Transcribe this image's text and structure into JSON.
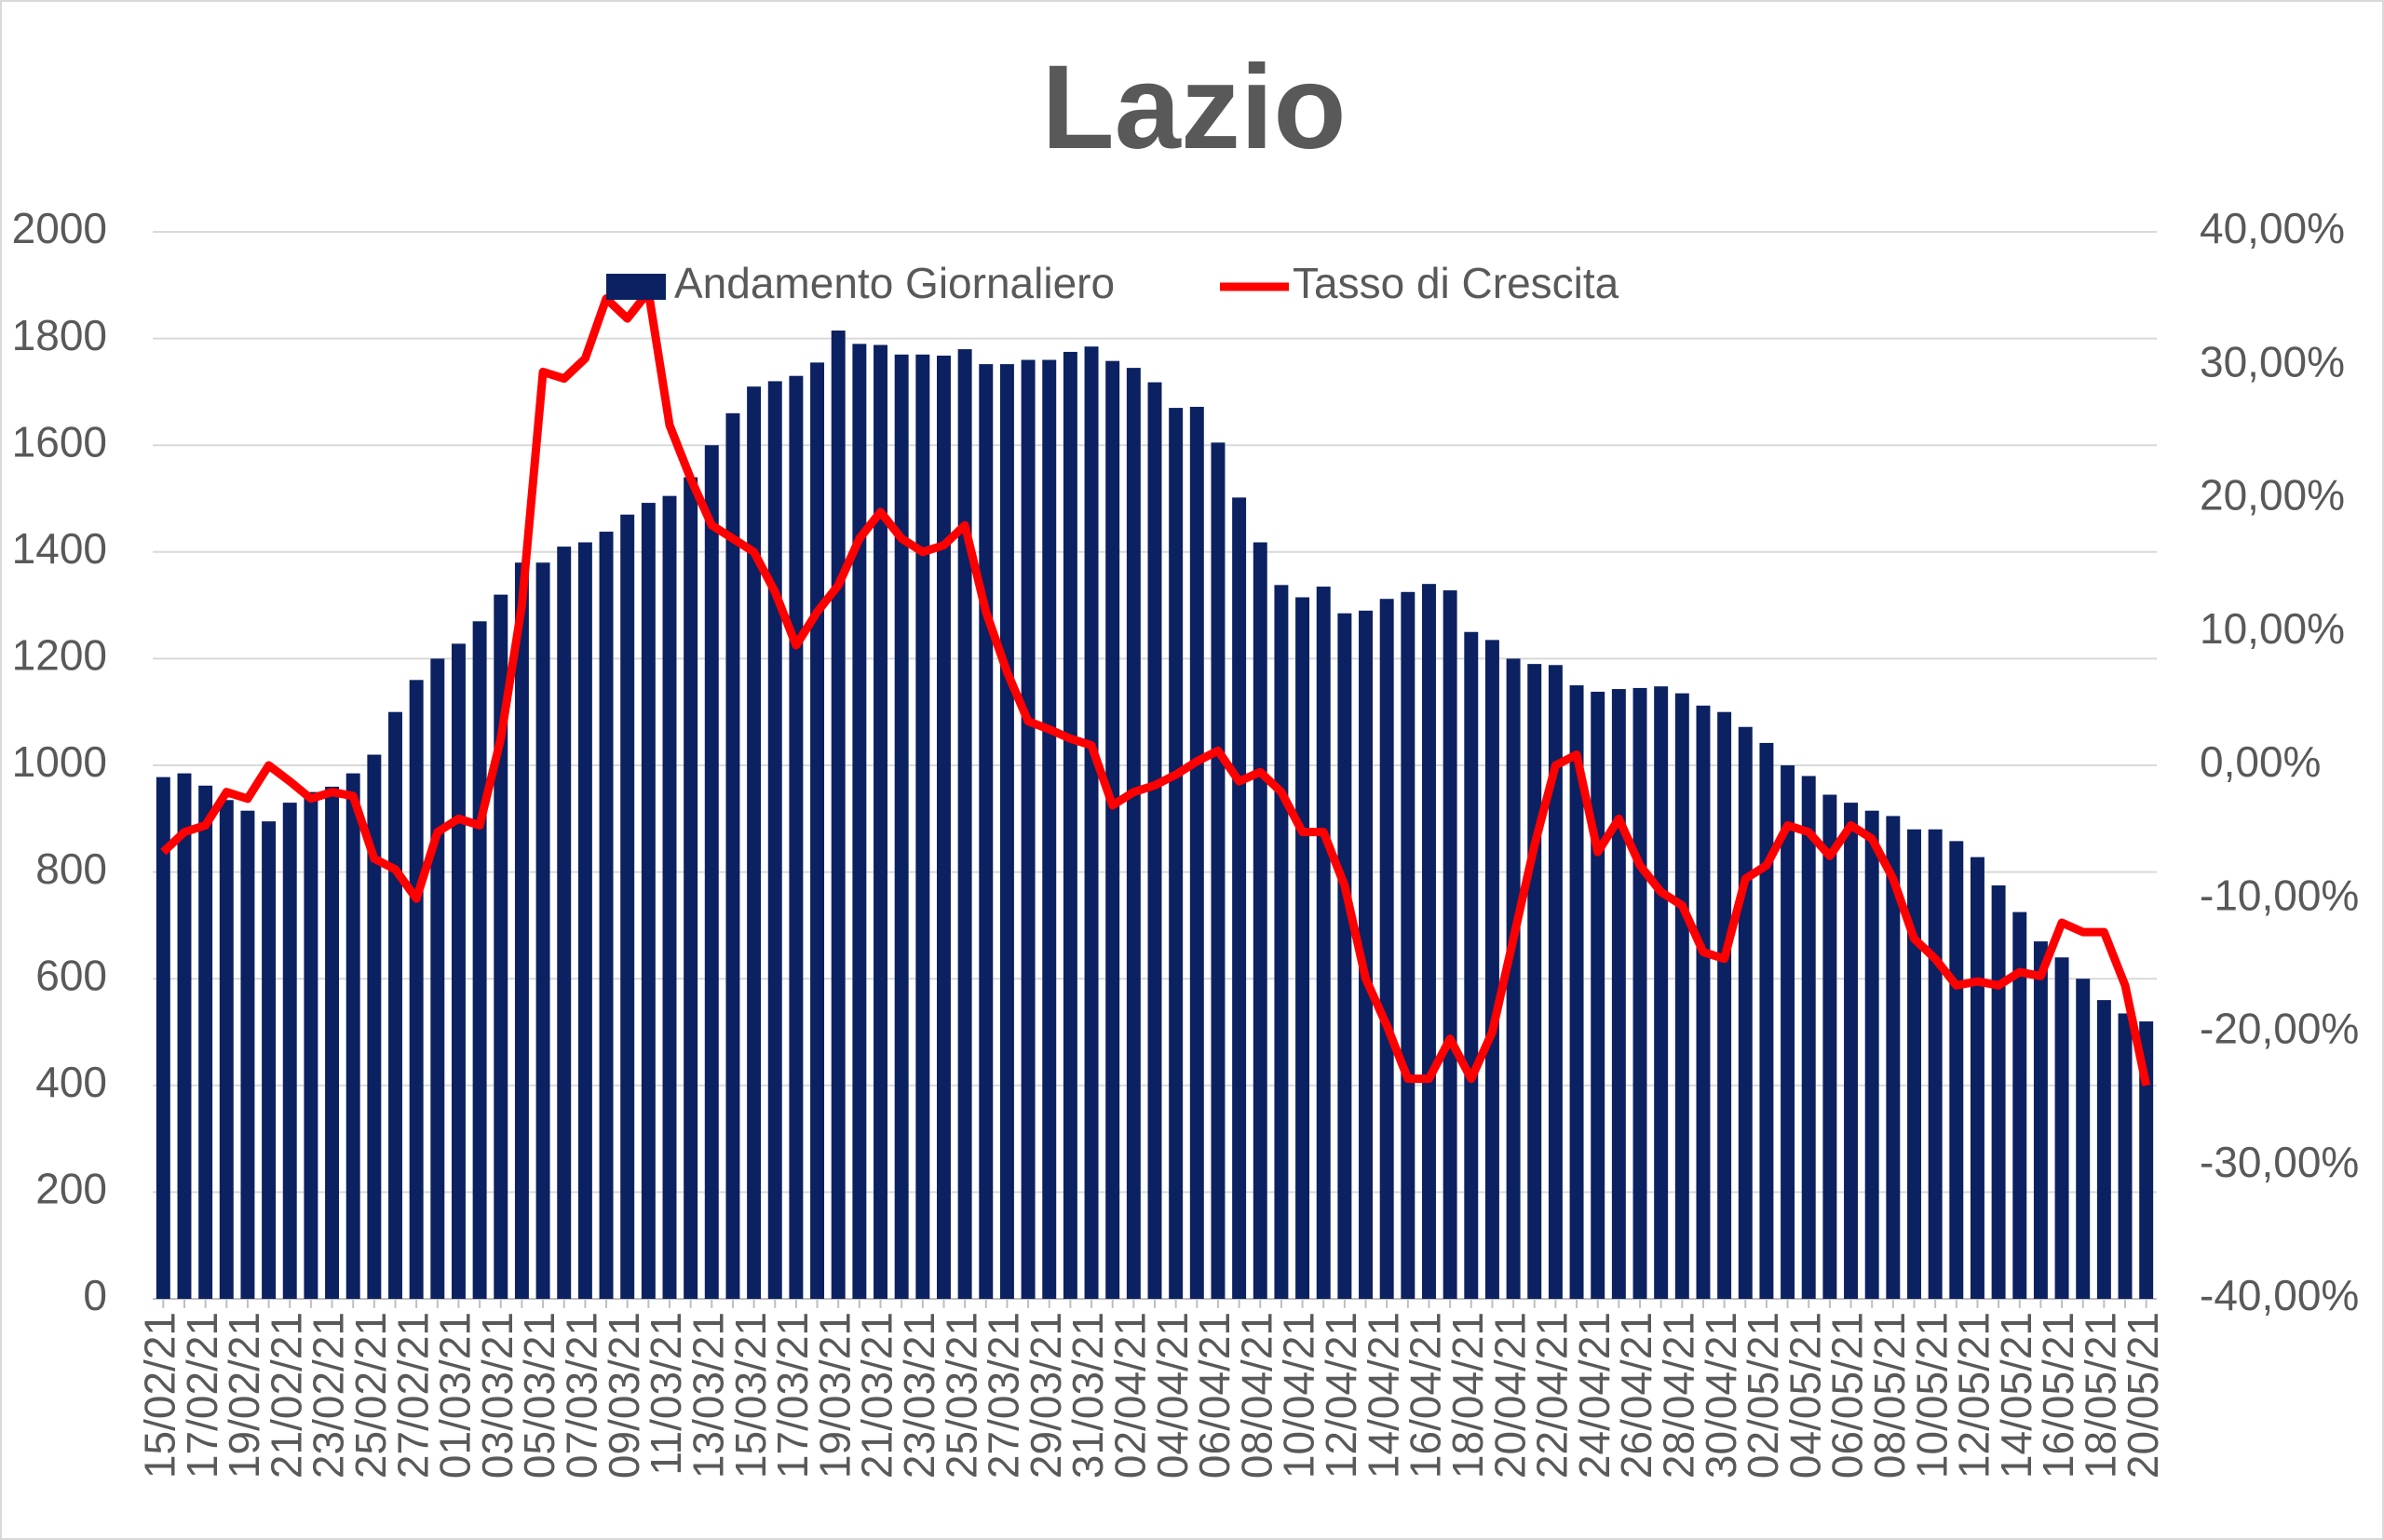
{
  "chart_data": {
    "type": "bar-line",
    "title": "Lazio",
    "categories": [
      "15/02/21",
      null,
      "17/02/21",
      null,
      "19/02/21",
      null,
      "21/02/21",
      null,
      "23/02/21",
      null,
      "25/02/21",
      null,
      "27/02/21",
      null,
      "01/03/21",
      null,
      "03/03/21",
      null,
      "05/03/21",
      null,
      "07/03/21",
      null,
      "09/03/21",
      null,
      "11/03/21",
      null,
      "13/03/21",
      null,
      "15/03/21",
      null,
      "17/03/21",
      null,
      "19/03/21",
      null,
      "21/03/21",
      null,
      "23/03/21",
      null,
      "25/03/21",
      null,
      "27/03/21",
      null,
      "29/03/21",
      null,
      "31/03/21",
      null,
      "02/04/21",
      null,
      "04/04/21",
      null,
      "06/04/21",
      null,
      "08/04/21",
      null,
      "10/04/21",
      null,
      "12/04/21",
      null,
      "14/04/21",
      null,
      "16/04/21",
      null,
      "18/04/21",
      null,
      "20/04/21",
      null,
      "22/04/21",
      null,
      "24/04/21",
      null,
      "26/04/21",
      null,
      "28/04/21",
      null,
      "30/04/21",
      null,
      "02/05/21",
      null,
      "04/05/21",
      null,
      "06/05/21",
      null,
      "08/05/21",
      null,
      "10/05/21",
      null,
      "12/05/21",
      null,
      "14/05/21",
      null,
      "16/05/21",
      null,
      "18/05/21",
      null,
      "20/05/21"
    ],
    "series": [
      {
        "name": "Andamento Giornaliero",
        "kind": "bar",
        "color": "#0b2161",
        "values": [
          978,
          985,
          962,
          935,
          915,
          895,
          930,
          950,
          960,
          985,
          1020,
          1100,
          1160,
          1200,
          1228,
          1270,
          1320,
          1380,
          1380,
          1410,
          1418,
          1438,
          1470,
          1492,
          1505,
          1540,
          1600,
          1660,
          1710,
          1720,
          1730,
          1755,
          1815,
          1790,
          1788,
          1770,
          1770,
          1768,
          1780,
          1752,
          1752,
          1760,
          1760,
          1775,
          1785,
          1758,
          1745,
          1718,
          1670,
          1672,
          1605,
          1502,
          1418,
          1338,
          1315,
          1335,
          1285,
          1290,
          1312,
          1325,
          1340,
          1328,
          1250,
          1235,
          1200,
          1190,
          1188,
          1150,
          1138,
          1143,
          1145,
          1148,
          1135,
          1112,
          1100,
          1072,
          1042,
          1000,
          980,
          945,
          930,
          915,
          905,
          880,
          880,
          858,
          828,
          775,
          725,
          670,
          640,
          600,
          560,
          535,
          520
        ]
      },
      {
        "name": "Tasso di Crescita",
        "kind": "line",
        "axis": "y2",
        "color": "#ff0000",
        "values": [
          -6.5,
          -5,
          -4.5,
          -2,
          -2.5,
          0,
          -1.2,
          -2.5,
          -2,
          -2.3,
          -7,
          -7.8,
          -10,
          -5,
          -4,
          -4.5,
          2,
          12,
          29.5,
          29,
          30.5,
          35,
          33.5,
          35.5,
          25.5,
          21.5,
          18,
          17,
          16,
          13,
          9,
          11.5,
          13.5,
          17,
          19,
          17,
          16,
          16.5,
          18,
          11.5,
          7,
          3.3,
          2.7,
          2,
          1.5,
          -3,
          -2,
          -1.5,
          -0.7,
          0.3,
          1.1,
          -1.2,
          -0.5,
          -2,
          -5,
          -5,
          -9,
          -16,
          -19.5,
          -23.5,
          -23.5,
          -20.5,
          -23.5,
          -20,
          -13,
          -6,
          0,
          0.8,
          -6.5,
          -4,
          -7.5,
          -9.5,
          -10.5,
          -14,
          -14.5,
          -8.5,
          -7.5,
          -4.5,
          -5,
          -6.8,
          -4.5,
          -5.5,
          -8.5,
          -13,
          -14.5,
          -16.5,
          -16.2,
          -16.5,
          -15.5,
          -15.8,
          -11.8,
          -12.5,
          -12.5,
          -16.5,
          -24
        ]
      }
    ],
    "ylim": [
      0,
      2000
    ],
    "yticks": [
      0,
      200,
      400,
      600,
      800,
      1000,
      1200,
      1400,
      1600,
      1800,
      2000
    ],
    "y2lim": [
      -40,
      40
    ],
    "y2ticks": [
      {
        "value": -40,
        "label": "-40,00%"
      },
      {
        "value": -30,
        "label": "-30,00%"
      },
      {
        "value": -20,
        "label": "-20,00%"
      },
      {
        "value": -10,
        "label": "-10,00%"
      },
      {
        "value": 0,
        "label": "0,00%"
      },
      {
        "value": 10,
        "label": "10,00%"
      },
      {
        "value": 20,
        "label": "20,00%"
      },
      {
        "value": 30,
        "label": "30,00%"
      },
      {
        "value": 40,
        "label": "40,00%"
      }
    ],
    "grid": true,
    "legend": "top"
  }
}
